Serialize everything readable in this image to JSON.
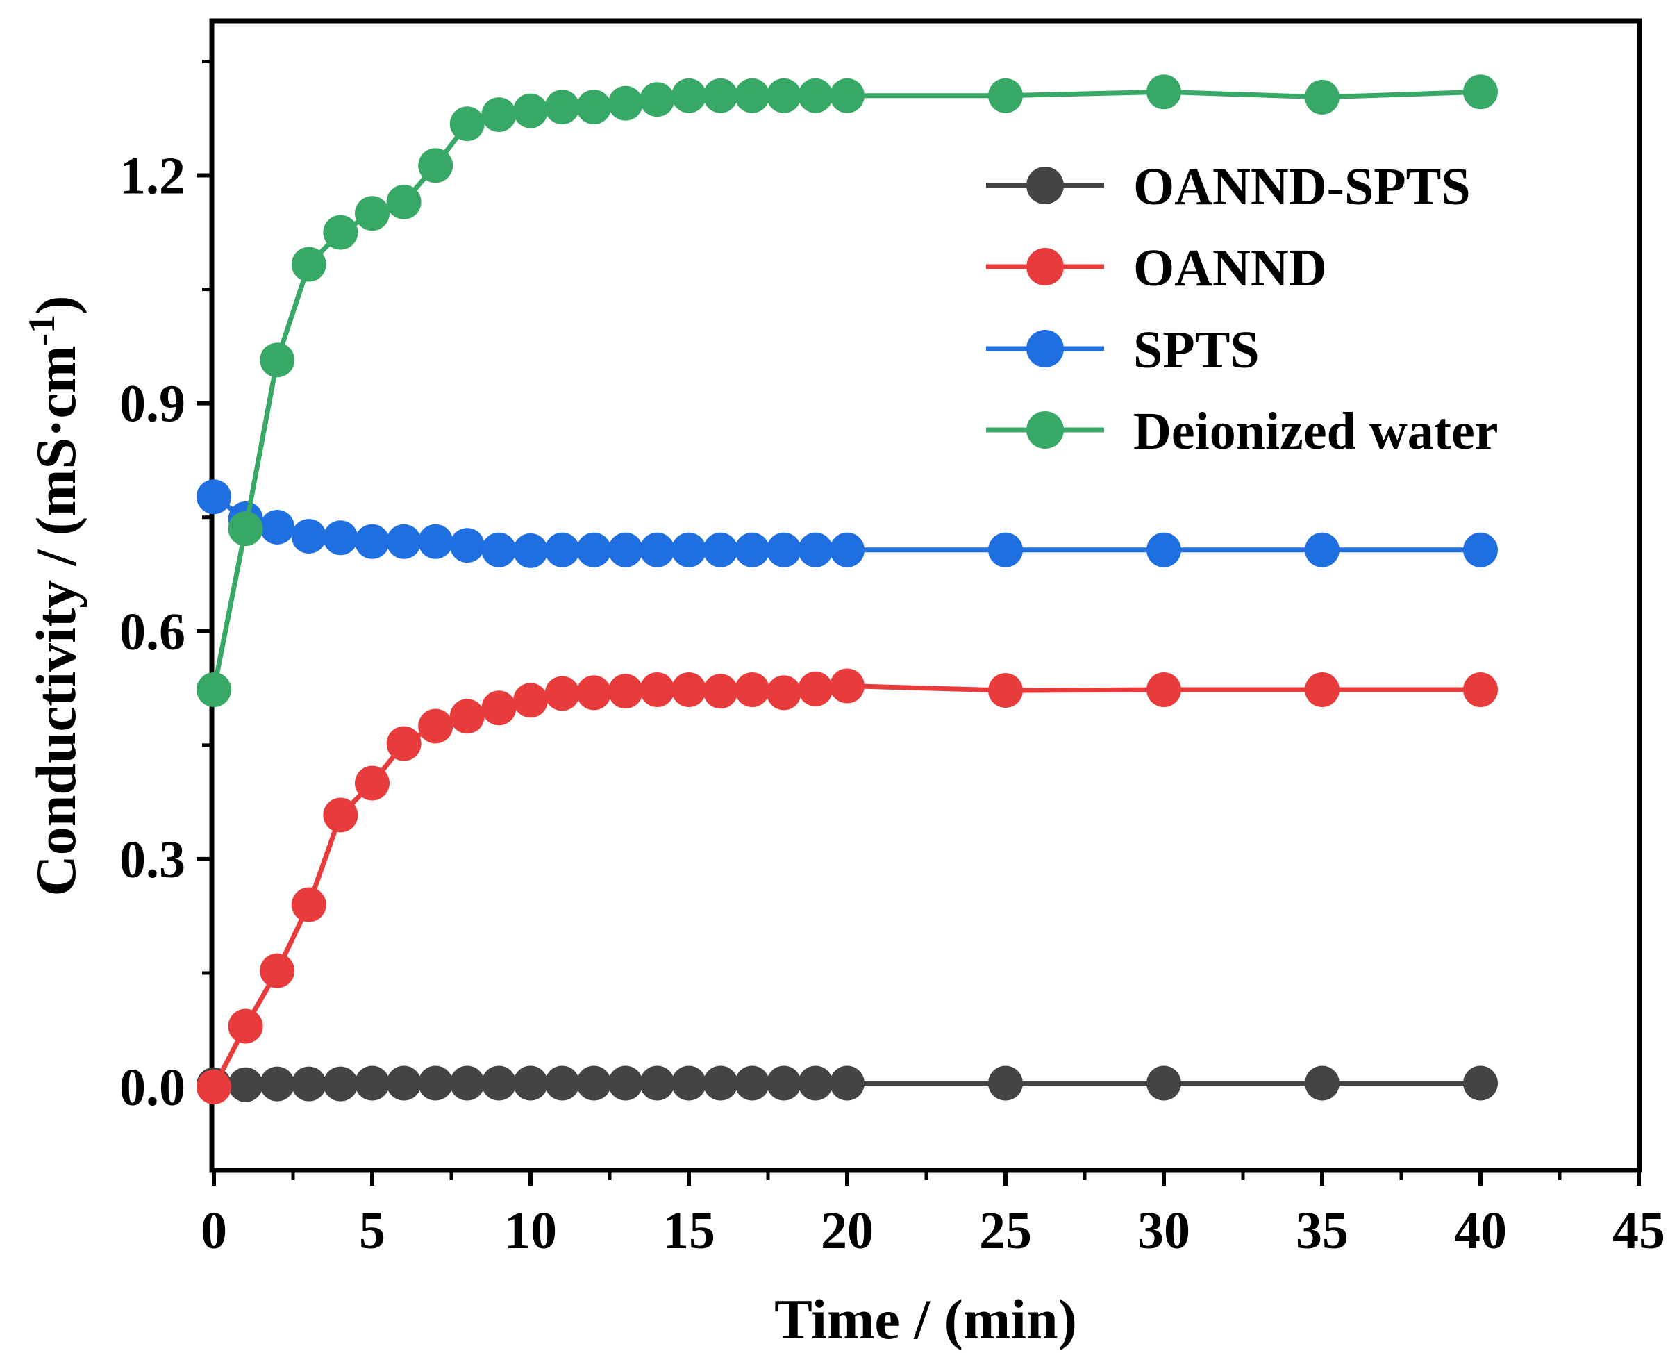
{
  "chart_data": {
    "type": "line",
    "title": "",
    "xlabel": "Time / (min)",
    "ylabel_main": "Conductivity / (mS·cm",
    "ylabel_sup": "-1",
    "ylabel_close": ")",
    "xlim": [
      0,
      45
    ],
    "ylim": [
      -0.1,
      1.4
    ],
    "xticks": [
      0,
      5,
      10,
      15,
      20,
      25,
      30,
      35,
      40,
      45
    ],
    "xtick_labels": [
      "0",
      "5",
      "10",
      "15",
      "20",
      "25",
      "30",
      "35",
      "40",
      "45"
    ],
    "yticks": [
      0.0,
      0.3,
      0.6,
      0.9,
      1.2
    ],
    "ytick_labels": [
      "0.0",
      "0.3",
      "0.6",
      "0.9",
      "1.2"
    ],
    "legend_position": "top-right",
    "x": [
      0,
      1,
      2,
      3,
      4,
      5,
      6,
      7,
      8,
      9,
      10,
      11,
      12,
      13,
      14,
      15,
      16,
      17,
      18,
      19,
      20,
      25,
      30,
      35,
      40
    ],
    "series": [
      {
        "name": "OANND-SPTS",
        "color": "#444444",
        "values": [
          0.003,
          0.003,
          0.004,
          0.004,
          0.004,
          0.005,
          0.005,
          0.005,
          0.005,
          0.005,
          0.005,
          0.005,
          0.005,
          0.005,
          0.005,
          0.005,
          0.005,
          0.005,
          0.005,
          0.005,
          0.005,
          0.005,
          0.005,
          0.005,
          0.005
        ]
      },
      {
        "name": "OANND",
        "color": "#e83c3c",
        "values": [
          0.0,
          0.08,
          0.153,
          0.24,
          0.358,
          0.4,
          0.452,
          0.475,
          0.488,
          0.499,
          0.509,
          0.518,
          0.519,
          0.521,
          0.523,
          0.523,
          0.521,
          0.523,
          0.519,
          0.524,
          0.528,
          0.522,
          0.523,
          0.523,
          0.523
        ]
      },
      {
        "name": "SPTS",
        "color": "#1f6fe0",
        "values": [
          0.777,
          0.748,
          0.737,
          0.725,
          0.723,
          0.718,
          0.718,
          0.718,
          0.713,
          0.707,
          0.706,
          0.707,
          0.707,
          0.707,
          0.707,
          0.707,
          0.707,
          0.707,
          0.707,
          0.707,
          0.707,
          0.707,
          0.707,
          0.707,
          0.707
        ]
      },
      {
        "name": "Deionized water",
        "color": "#38a866",
        "values": [
          0.523,
          0.735,
          0.957,
          1.083,
          1.125,
          1.15,
          1.165,
          1.213,
          1.268,
          1.28,
          1.285,
          1.29,
          1.29,
          1.295,
          1.3,
          1.305,
          1.305,
          1.305,
          1.305,
          1.305,
          1.305,
          1.305,
          1.31,
          1.303,
          1.31
        ]
      }
    ]
  }
}
